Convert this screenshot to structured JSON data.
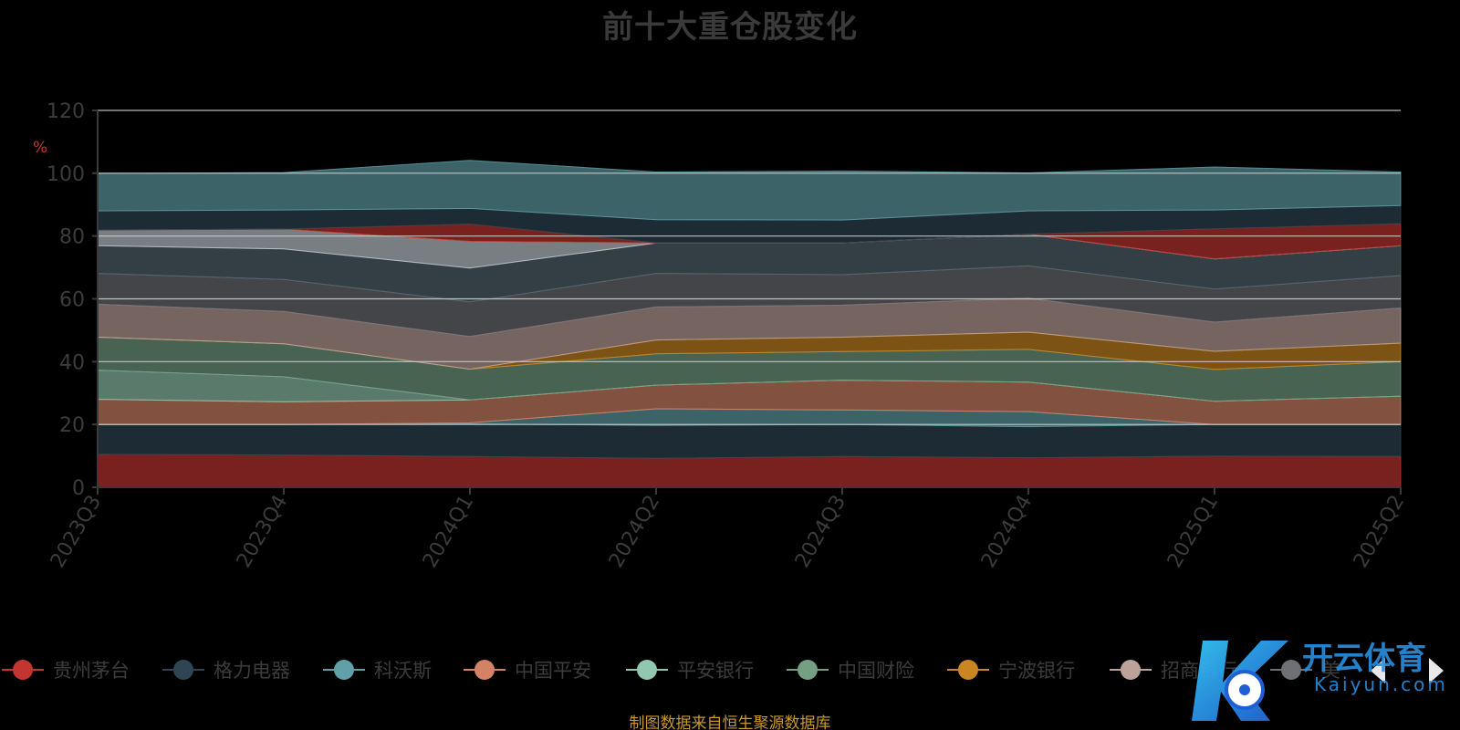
{
  "chart_data": {
    "type": "area",
    "stacked": true,
    "title": "前十大重仓股变化",
    "ylabel": "%",
    "ylim": [
      0,
      120
    ],
    "yticks": [
      0,
      20,
      40,
      60,
      80,
      100,
      120
    ],
    "grid": true,
    "legend_position": "bottom",
    "categories": [
      "2023Q3",
      "2023Q4",
      "2024Q1",
      "2024Q2",
      "2024Q3",
      "2024Q4",
      "2025Q1",
      "2025Q2"
    ],
    "series": [
      {
        "name": "贵州茅台",
        "color": "#c23531",
        "values": [
          10.5,
          10.3,
          9.8,
          9.2,
          9.8,
          9.4,
          9.9,
          9.8
        ]
      },
      {
        "name": "格力电器",
        "color": "#2f4554",
        "values": [
          9.5,
          9.7,
          10.4,
          10.5,
          10.2,
          9.9,
          10.1,
          10.2
        ]
      },
      {
        "name": "科沃斯",
        "color": "#61a0a8",
        "values": [
          0,
          0,
          0.3,
          5.3,
          4.6,
          4.8,
          0,
          0
        ]
      },
      {
        "name": "中国平安",
        "color": "#d48265",
        "values": [
          8,
          7.2,
          7.3,
          7.5,
          9.5,
          9.4,
          7.4,
          9
        ]
      },
      {
        "name": "平安银行",
        "color": "#91c7ae",
        "values": [
          9.3,
          8,
          0,
          0,
          0,
          0,
          0,
          0
        ]
      },
      {
        "name": "中国财险",
        "color": "#749f83",
        "values": [
          10.5,
          10.5,
          9.8,
          10,
          9.1,
          10.4,
          10.1,
          11
        ]
      },
      {
        "name": "宁波银行",
        "color": "#ca8622",
        "values": [
          0,
          0,
          0,
          4.4,
          4.6,
          5.5,
          5.8,
          5.9
        ]
      },
      {
        "name": "招商银行",
        "color": "#bda29a",
        "values": [
          10.5,
          10.3,
          10.4,
          10.5,
          10.2,
          10.8,
          9.3,
          11.2
        ]
      },
      {
        "name": "",
        "color": "#6e7074",
        "values": [
          9.8,
          10.2,
          11,
          10.7,
          9.7,
          10.3,
          10.5,
          10.3
        ]
      },
      {
        "name": "",
        "color": "#546570",
        "values": [
          8.8,
          9.7,
          10.8,
          9.7,
          10.1,
          10.1,
          9.6,
          9.5
        ]
      },
      {
        "name": "",
        "color": "#c4ccd3",
        "values": [
          5,
          6.3,
          8.5,
          0,
          0,
          0,
          0,
          0
        ]
      },
      {
        "name": "",
        "color": "#c23531",
        "values": [
          0,
          0,
          5.5,
          0,
          0,
          0,
          9.6,
          7
        ]
      },
      {
        "name": "",
        "color": "#2f4554",
        "values": [
          6.1,
          6.1,
          5,
          7.4,
          7.3,
          7.4,
          6,
          5.8
        ]
      },
      {
        "name": "",
        "color": "#61a0a8",
        "values": [
          11.9,
          11.9,
          15.3,
          15.2,
          15.6,
          12.1,
          13.7,
          10.7
        ]
      }
    ]
  },
  "legend": {
    "items": [
      {
        "label": "贵州茅台",
        "color": "#c23531"
      },
      {
        "label": "格力电器",
        "color": "#2f4554"
      },
      {
        "label": "科沃斯",
        "color": "#61a0a8"
      },
      {
        "label": "中国平安",
        "color": "#d48265"
      },
      {
        "label": "平安银行",
        "color": "#91c7ae"
      },
      {
        "label": "中国财险",
        "color": "#749f83"
      },
      {
        "label": "宁波银行",
        "color": "#ca8622"
      },
      {
        "label": "招商银行",
        "color": "#bda29a"
      },
      {
        "label": "美",
        "color": "#6e7074"
      }
    ]
  },
  "source_note": "制图数据来自恒生聚源数据库",
  "watermark": {
    "title": "开云体育",
    "subtitle": "Kaiyun.com"
  }
}
